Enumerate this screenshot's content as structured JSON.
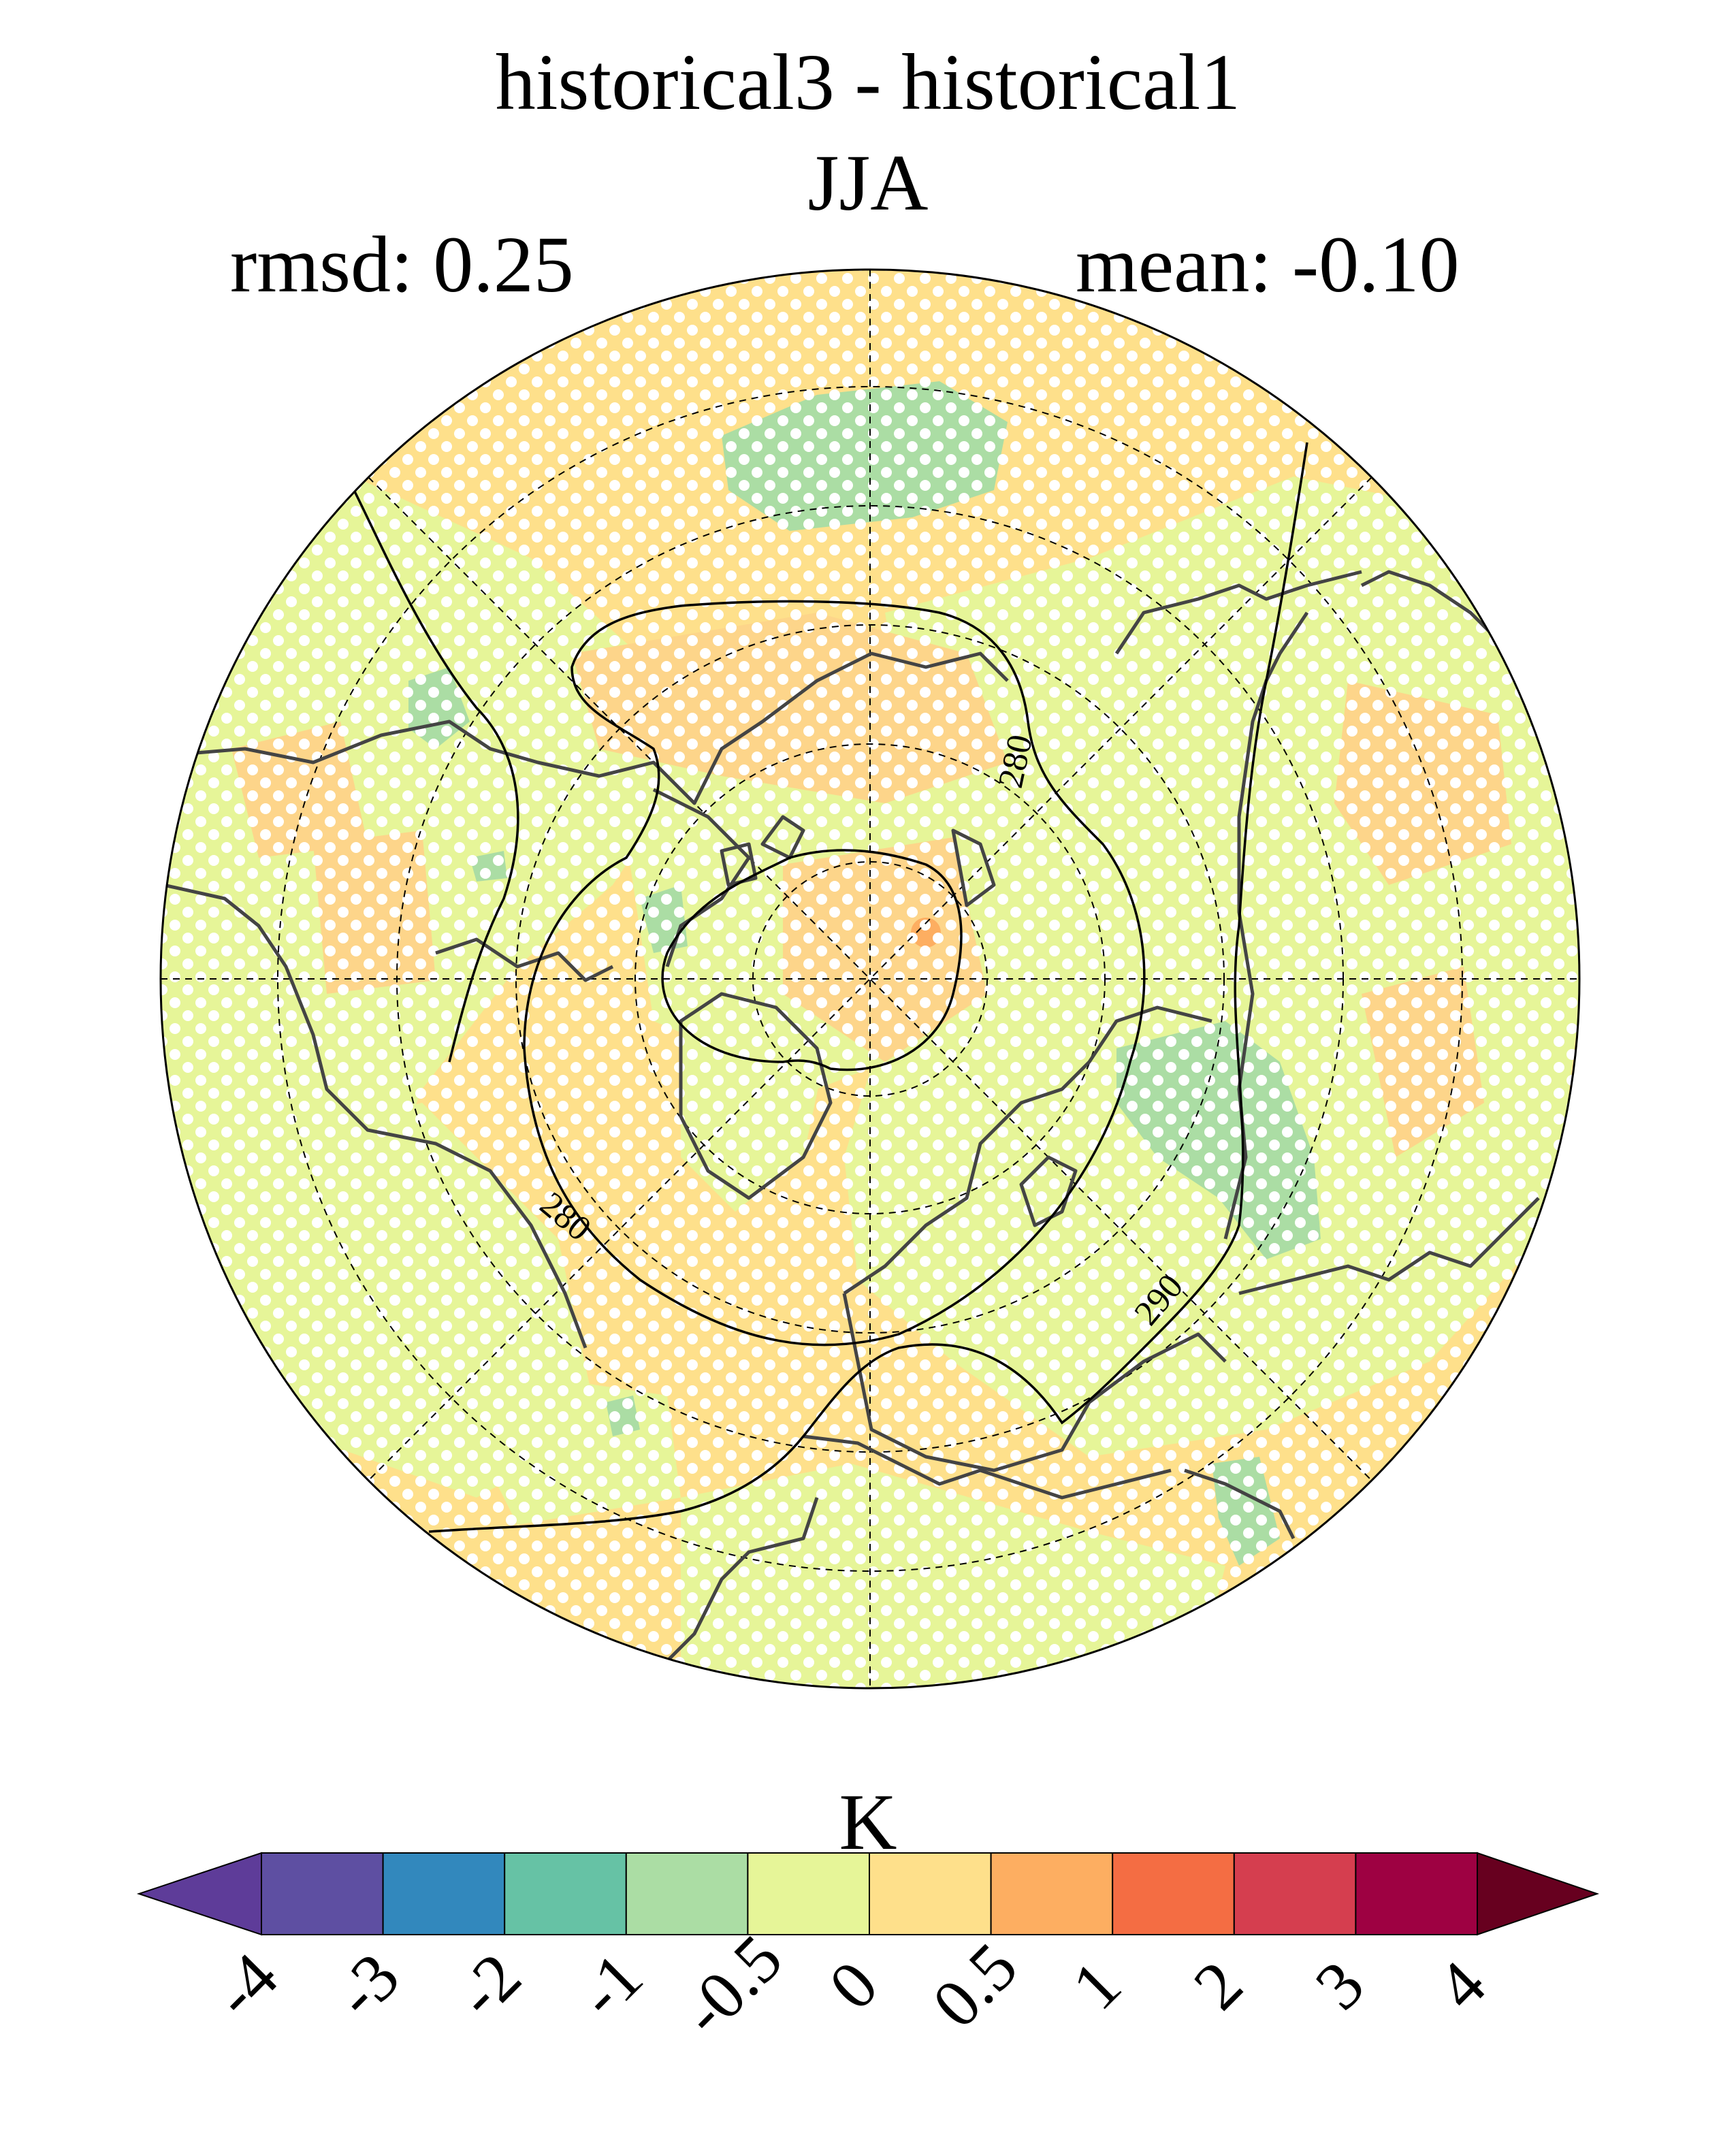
{
  "header": {
    "title": "historical3 - historical1",
    "season": "JJA",
    "rmsd_text": "rmsd: 0.25",
    "mean_text": "mean: -0.10"
  },
  "map": {
    "projection": "north polar stereographic",
    "contour_labels": [
      "280",
      "280",
      "290"
    ],
    "stippling": true,
    "colors": {
      "ocean_base": "#fee08b",
      "land_base": "#e6f598",
      "green_patch": "#abdda4",
      "teal_patch": "#66c2a5",
      "orange_patch": "#fdae61",
      "coast": "#444444"
    }
  },
  "colorbar": {
    "units": "K",
    "tick_labels": [
      "-4",
      "-3",
      "-2",
      "-1",
      "-0.5",
      "0",
      "0.5",
      "1",
      "2",
      "3",
      "4"
    ],
    "under_color": "#5e3c99",
    "over_color": "#67001f",
    "colors": [
      "#5e4fa2",
      "#3288bd",
      "#66c2a5",
      "#abdda4",
      "#e6f598",
      "#fee08b",
      "#fdae61",
      "#f46d43",
      "#d53e4f",
      "#9e0142"
    ]
  }
}
